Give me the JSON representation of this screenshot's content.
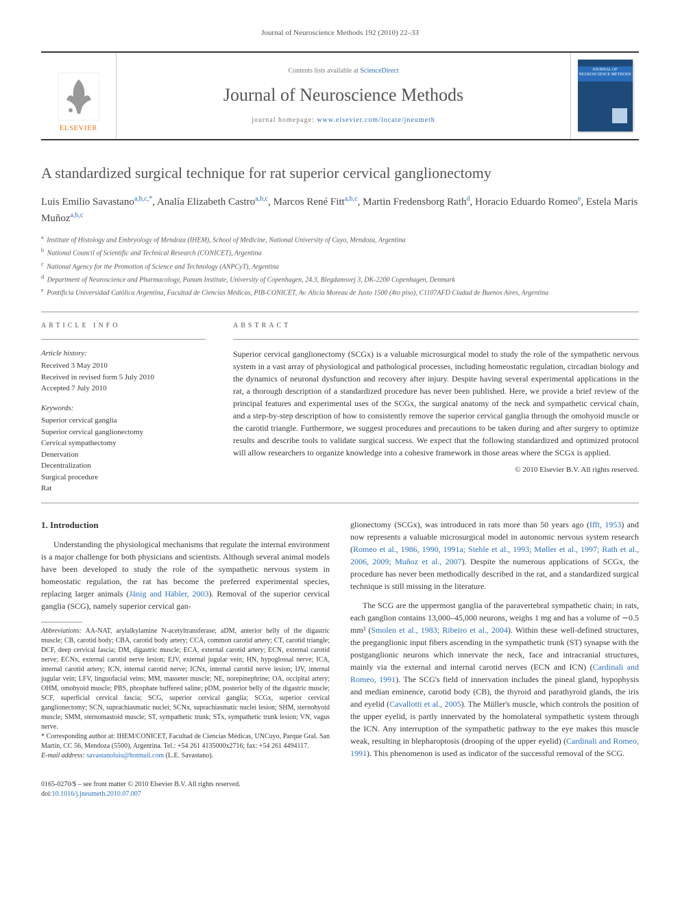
{
  "citation": "Journal of Neuroscience Methods 192 (2010) 22–33",
  "masthead": {
    "publisher": "ELSEVIER",
    "contents_prefix": "Contents lists available at ",
    "contents_link": "ScienceDirect",
    "journal_name": "Journal of Neuroscience Methods",
    "homepage_prefix": "journal homepage: ",
    "homepage_url": "www.elsevier.com/locate/jneumeth",
    "cover_text": "JOURNAL OF NEUROSCIENCE METHODS",
    "colors": {
      "accent": "#ff6c00",
      "link": "#2a6ebb",
      "cover_bg": "#1e4a7a",
      "cover_band": "#2a6ebb"
    }
  },
  "title": "A standardized surgical technique for rat superior cervical ganglionectomy",
  "authors_html": "Luis Emilio Savastano<sup>a,b,c,*</sup>, Analía Elizabeth Castro<sup>a,b,c</sup>, Marcos René Fitt<sup>a,b,c</sup>, Martin Fredensborg Rath<sup>d</sup>, Horacio Eduardo Romeo<sup>e</sup>, Estela Maris Muñoz<sup>a,b,c</sup>",
  "affiliations": [
    {
      "sup": "a",
      "text": "Institute of Histology and Embryology of Mendoza (IHEM), School of Medicine, National University of Cuyo, Mendoza, Argentina"
    },
    {
      "sup": "b",
      "text": "National Council of Scientific and Technical Research (CONICET), Argentina"
    },
    {
      "sup": "c",
      "text": "National Agency for the Promotion of Science and Technology (ANPCyT), Argentina"
    },
    {
      "sup": "d",
      "text": "Department of Neuroscience and Pharmacology, Panum Institute, University of Copenhagen, 24.3, Blegdamsvej 3, DK-2200 Copenhagen, Denmark"
    },
    {
      "sup": "e",
      "text": "Pontificia Universidad Católica Argentina, Facultad de Ciencias Médicas, PIB-CONICET, Av. Alicia Moreau de Justo 1500 (4to piso), C1107AFD Ciudad de Buenos Aires, Argentina"
    }
  ],
  "info": {
    "article_info_label": "ARTICLE INFO",
    "abstract_label": "ABSTRACT",
    "history_label": "Article history:",
    "history": [
      "Received 3 May 2010",
      "Received in revised form 5 July 2010",
      "Accepted 7 July 2010"
    ],
    "keywords_label": "Keywords:",
    "keywords": [
      "Superior cervical ganglia",
      "Superior cervical ganglionectomy",
      "Cervical sympathectomy",
      "Denervation",
      "Decentralization",
      "Surgical procedure",
      "Rat"
    ]
  },
  "abstract": "Superior cervical ganglionectomy (SCGx) is a valuable microsurgical model to study the role of the sympathetic nervous system in a vast array of physiological and pathological processes, including homeostatic regulation, circadian biology and the dynamics of neuronal dysfunction and recovery after injury. Despite having several experimental applications in the rat, a thorough description of a standardized procedure has never been published. Here, we provide a brief review of the principal features and experimental uses of the SCGx, the surgical anatomy of the neck and sympathetic cervical chain, and a step-by-step description of how to consistently remove the superior cervical ganglia through the omohyoid muscle or the carotid triangle. Furthermore, we suggest procedures and precautions to be taken during and after surgery to optimize results and describe tools to validate surgical success. We expect that the following standardized and optimized protocol will allow researchers to organize knowledge into a cohesive framework in those areas where the SCGx is applied.",
  "copyright": "© 2010 Elsevier B.V. All rights reserved.",
  "body": {
    "heading": "1.  Introduction",
    "para1": "Understanding the physiological mechanisms that regulate the internal environment is a major challenge for both physicians and scientists. Although several animal models have been developed to study the role of the sympathetic nervous system in homeostatic regulation, the rat has become the preferred experimental species, replacing larger animals (Jänig and Häbler, 2003). Removal of the superior cervical ganglia (SCG), namely superior cervical gan-",
    "para2": "glionectomy (SCGx), was introduced in rats more than 50 years ago (Ifft, 1953) and now represents a valuable microsurgical model in autonomic nervous system research (Romeo et al., 1986, 1990, 1991a; Stehle et al., 1993; Møller et al., 1997; Rath et al., 2006, 2009; Muñoz et al., 2007). Despite the numerous applications of SCGx, the procedure has never been methodically described in the rat, and a standardized surgical technique is still missing in the literature.",
    "para3": "The SCG are the uppermost ganglia of the paravertebral sympathetic chain; in rats, each ganglion contains 13,000–45,000 neurons, weighs 1 mg and has a volume of ∼0.5 mm³ (Smolen et al., 1983; Ribeiro et al., 2004). Within these well-defined structures, the preganglionic input fibers ascending in the sympathetic trunk (ST) synapse with the postganglionic neurons which innervate the neck, face and intracranial structures, mainly via the external and internal carotid nerves (ECN and ICN) (Cardinali and Romeo, 1991). The SCG's field of innervation includes the pineal gland, hypophysis and median eminence, carotid body (CB), the thyroid and parathyroid glands, the iris and eyelid (Cavallotti et al., 2005). The Müller's muscle, which controls the position of the upper eyelid, is partly innervated by the homolateral sympathetic system through the ICN. Any interruption of the sympathetic pathway to the eye makes this muscle weak, resulting in blepharoptosis (drooping of the upper eyelid) (Cardinali and Romeo, 1991). This phenomenon is used as indicator of the successful removal of the SCG."
  },
  "footnotes": {
    "abbrev_label": "Abbreviations:",
    "abbrev": " AA-NAT, arylalkylamine N-acetyltransferase; aDM, anterior belly of the digastric muscle; CB, carotid body; CBA, carotid body artery; CCA, common carotid artery; CT, carotid triangle; DCF, deep cervical fascia; DM, digastric muscle; ECA, external carotid artery; ECN, external carotid nerve; ECNx, external carotid nerve lesion; EJV, external jugular vein; HN, hypoglossal nerve; ICA, internal carotid artery; ICN, internal carotid nerve; ICNx, internal carotid nerve lesion; IJV, internal jugular vein; LFV, linguofacial veins; MM, masseter muscle; NE, norepinephrine; OA, occipital artery; OHM, omohyoid muscle; PBS, phosphate buffered saline; pDM, posterior belly of the digastric muscle; SCF, superficial cervical fascia; SCG, superior cervical ganglia; SCGx, superior cervical ganglionectomy; SCN, suprachiasmatic nuclei; SCNx, suprachiasmatic nuclei lesion; SHM, sternohyoid muscle; SMM, sternomastoid muscle; ST, sympathetic trunk; STx, sympathetic trunk lesion; VN, vagus nerve.",
    "corr_marker": "*",
    "corr": " Corresponding author at: IHEM/CONICET, Facultad de Ciencias Médicas, UNCuyo, Parque Gral. San Martín, CC 56, Mendoza (5500), Argentina. Tel.: +54 261 4135000x2716; fax: +54 261 4494117.",
    "email_label": "E-mail address:",
    "email": "savastanoluis@hotmail.com",
    "email_suffix": " (L.E. Savastano)."
  },
  "footer": {
    "issn": "0165-0270/$ – see front matter © 2010 Elsevier B.V. All rights reserved.",
    "doi_label": "doi:",
    "doi": "10.1016/j.jneumeth.2010.07.007"
  }
}
